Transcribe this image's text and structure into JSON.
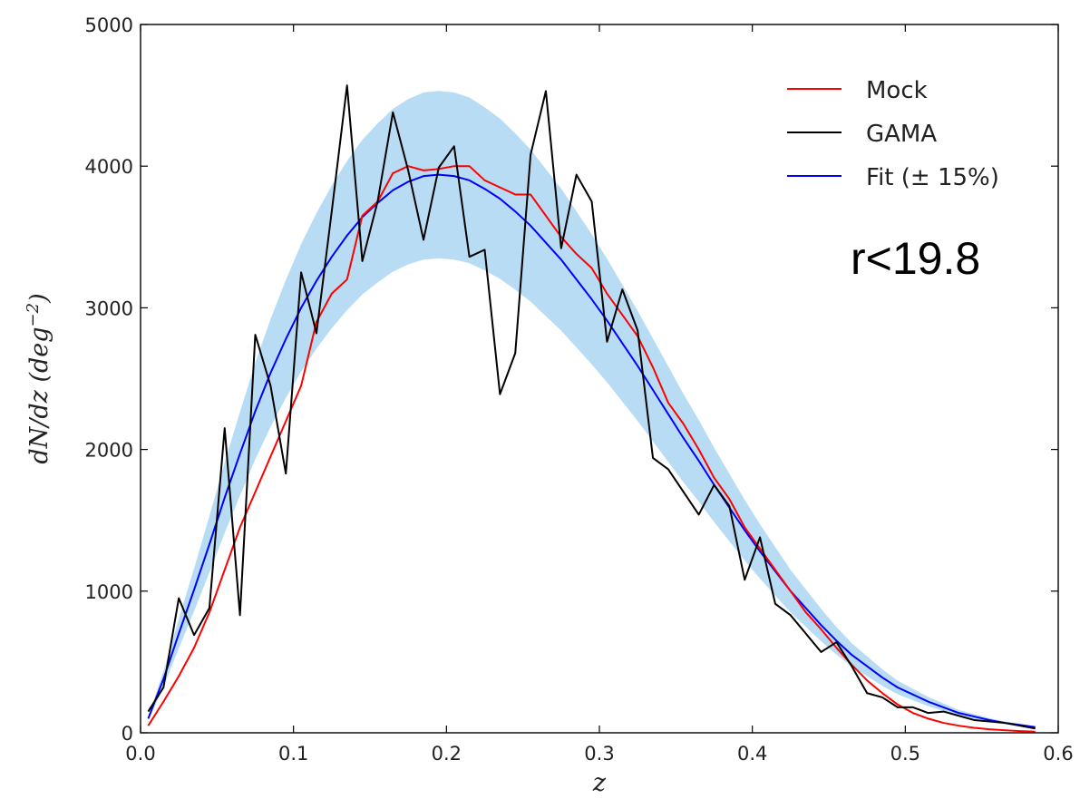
{
  "chart_data": {
    "type": "line",
    "xlabel": "z",
    "ylabel": "dN/dz (deg−2)",
    "xlim": [
      0.0,
      0.6
    ],
    "ylim": [
      0,
      5000
    ],
    "xticks": [
      0.0,
      0.1,
      0.2,
      0.3,
      0.4,
      0.5,
      0.6
    ],
    "xtick_labels": [
      "0.0",
      "0.1",
      "0.2",
      "0.3",
      "0.4",
      "0.5",
      "0.6"
    ],
    "yticks": [
      0,
      1000,
      2000,
      3000,
      4000,
      5000
    ],
    "ytick_labels": [
      "0",
      "1000",
      "2000",
      "3000",
      "4000",
      "5000"
    ],
    "grid": false,
    "legend_position": "top-right",
    "annotation": "r<19.8",
    "band": {
      "label": "Fit (± 15%)",
      "color": "#b9dcf5",
      "fraction": 0.15
    },
    "series": [
      {
        "name": "Mock",
        "color": "#ff0000",
        "x": [
          0.005,
          0.015,
          0.025,
          0.035,
          0.045,
          0.055,
          0.065,
          0.075,
          0.085,
          0.095,
          0.105,
          0.115,
          0.125,
          0.135,
          0.145,
          0.155,
          0.165,
          0.175,
          0.185,
          0.195,
          0.205,
          0.215,
          0.225,
          0.235,
          0.245,
          0.255,
          0.265,
          0.275,
          0.285,
          0.295,
          0.305,
          0.315,
          0.325,
          0.335,
          0.345,
          0.355,
          0.365,
          0.375,
          0.385,
          0.395,
          0.405,
          0.415,
          0.425,
          0.435,
          0.445,
          0.455,
          0.465,
          0.475,
          0.485,
          0.495,
          0.505,
          0.515,
          0.525,
          0.535,
          0.545,
          0.555,
          0.565,
          0.575,
          0.585
        ],
        "y": [
          50,
          220,
          400,
          600,
          850,
          1150,
          1450,
          1700,
          1950,
          2200,
          2450,
          2900,
          3100,
          3200,
          3650,
          3750,
          3950,
          4000,
          3970,
          3980,
          4000,
          4000,
          3900,
          3850,
          3800,
          3800,
          3650,
          3500,
          3380,
          3280,
          3100,
          2950,
          2800,
          2580,
          2330,
          2180,
          2000,
          1800,
          1650,
          1450,
          1300,
          1150,
          1000,
          850,
          730,
          600,
          480,
          370,
          280,
          200,
          140,
          100,
          70,
          50,
          35,
          25,
          18,
          12,
          8
        ]
      },
      {
        "name": "GAMA",
        "color": "#000000",
        "x": [
          0.005,
          0.015,
          0.025,
          0.035,
          0.045,
          0.055,
          0.065,
          0.075,
          0.085,
          0.095,
          0.105,
          0.115,
          0.125,
          0.135,
          0.145,
          0.155,
          0.165,
          0.175,
          0.185,
          0.195,
          0.205,
          0.215,
          0.225,
          0.235,
          0.245,
          0.255,
          0.265,
          0.275,
          0.285,
          0.295,
          0.305,
          0.315,
          0.325,
          0.335,
          0.345,
          0.355,
          0.365,
          0.375,
          0.385,
          0.395,
          0.405,
          0.415,
          0.425,
          0.435,
          0.445,
          0.455,
          0.465,
          0.475,
          0.485,
          0.495,
          0.505,
          0.515,
          0.525,
          0.535,
          0.545,
          0.555,
          0.565,
          0.575,
          0.585
        ],
        "y": [
          150,
          320,
          950,
          690,
          880,
          2150,
          830,
          2810,
          2450,
          1830,
          3250,
          2820,
          3680,
          4570,
          3330,
          3750,
          4380,
          3970,
          3480,
          3990,
          4140,
          3360,
          3410,
          2390,
          2680,
          4080,
          4530,
          3420,
          3940,
          3750,
          2760,
          3130,
          2840,
          1940,
          1860,
          1700,
          1540,
          1750,
          1600,
          1080,
          1380,
          910,
          830,
          700,
          570,
          640,
          470,
          280,
          250,
          180,
          180,
          140,
          150,
          120,
          90,
          80,
          70,
          50,
          30
        ]
      },
      {
        "name": "Fit (± 15%)",
        "color": "#0000ff",
        "x": [
          0.005,
          0.015,
          0.025,
          0.035,
          0.045,
          0.055,
          0.065,
          0.075,
          0.085,
          0.095,
          0.105,
          0.115,
          0.125,
          0.135,
          0.145,
          0.155,
          0.165,
          0.175,
          0.185,
          0.195,
          0.205,
          0.215,
          0.225,
          0.235,
          0.245,
          0.255,
          0.265,
          0.275,
          0.285,
          0.295,
          0.305,
          0.315,
          0.325,
          0.335,
          0.345,
          0.355,
          0.365,
          0.375,
          0.385,
          0.395,
          0.405,
          0.415,
          0.425,
          0.435,
          0.445,
          0.455,
          0.465,
          0.475,
          0.485,
          0.495,
          0.505,
          0.515,
          0.525,
          0.535,
          0.545,
          0.555,
          0.565,
          0.575,
          0.585
        ],
        "y": [
          100,
          380,
          700,
          1010,
          1330,
          1660,
          1970,
          2270,
          2540,
          2780,
          3000,
          3190,
          3360,
          3510,
          3640,
          3740,
          3830,
          3890,
          3930,
          3940,
          3930,
          3900,
          3840,
          3770,
          3680,
          3580,
          3460,
          3340,
          3200,
          3060,
          2910,
          2750,
          2590,
          2420,
          2250,
          2080,
          1920,
          1750,
          1590,
          1430,
          1280,
          1140,
          1000,
          880,
          760,
          650,
          550,
          470,
          390,
          320,
          270,
          220,
          180,
          140,
          115,
          90,
          70,
          55,
          40
        ]
      }
    ]
  }
}
